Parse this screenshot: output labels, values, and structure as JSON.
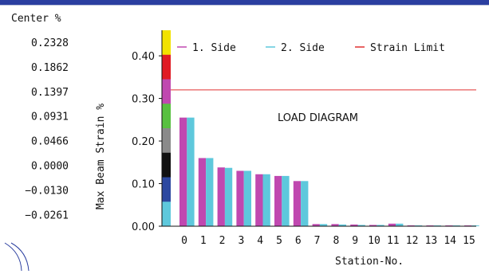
{
  "legend_panel": {
    "header": "Center %",
    "values": [
      "0.2328",
      "0.1862",
      "0.1397",
      "0.0931",
      "0.0466",
      "0.0000",
      "−0.0130",
      "−0.0261"
    ]
  },
  "scale_colors": [
    "#f2e200",
    "#e01b24",
    "#c048b0",
    "#58c040",
    "#8a8a8a",
    "#111111",
    "#2c48a0",
    "#5ec8dc"
  ],
  "chart_data": {
    "type": "bar",
    "title": "LOAD DIAGRAM",
    "xlabel": "Station-No.",
    "ylabel": "Max Beam Strain %",
    "ylim": [
      0,
      0.46
    ],
    "yticks": [
      "0.00",
      "0.10",
      "0.20",
      "0.30",
      "0.40"
    ],
    "categories": [
      "0",
      "1",
      "2",
      "3",
      "4",
      "5",
      "6",
      "7",
      "8",
      "9",
      "10",
      "11",
      "12",
      "13",
      "14",
      "15"
    ],
    "series": [
      {
        "name": "1. Side",
        "color": "#c048b0",
        "values": [
          0.255,
          0.16,
          0.138,
          0.13,
          0.122,
          0.118,
          0.106,
          0.005,
          0.005,
          0.004,
          0.003,
          0.006,
          0.002,
          0.001,
          0.001,
          0.001
        ]
      },
      {
        "name": "2. Side",
        "color": "#5ec8dc",
        "values": [
          0.255,
          0.16,
          0.137,
          0.13,
          0.122,
          0.118,
          0.106,
          0.005,
          0.004,
          0.003,
          0.003,
          0.006,
          0.002,
          0.001,
          0.001,
          0.001
        ]
      }
    ],
    "limit": {
      "name": "Strain Limit",
      "value": 0.32,
      "color": "#e03030"
    },
    "legend_position": "top",
    "grid": false
  }
}
